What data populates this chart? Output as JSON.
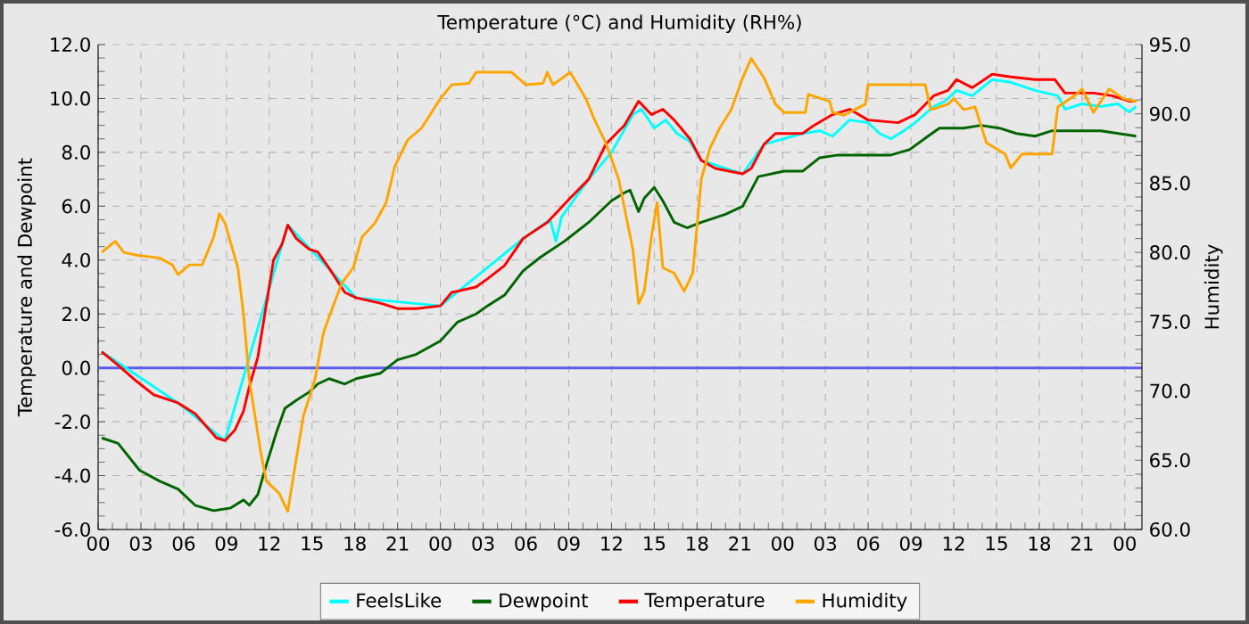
{
  "chart_data": {
    "type": "line",
    "title": "Temperature (°C) and Humidity (RH%)",
    "ylabel": "Temperature and Dewpoint",
    "y2label": "Humidity",
    "xlim": [
      0,
      73.2
    ],
    "ylim": [
      -6,
      12
    ],
    "y2lim": [
      60,
      95
    ],
    "xticks": [
      {
        "value": 0,
        "label": "00"
      },
      {
        "value": 3,
        "label": "03"
      },
      {
        "value": 6,
        "label": "06"
      },
      {
        "value": 9,
        "label": "09"
      },
      {
        "value": 12,
        "label": "12"
      },
      {
        "value": 15,
        "label": "15"
      },
      {
        "value": 18,
        "label": "18"
      },
      {
        "value": 21,
        "label": "21"
      },
      {
        "value": 24,
        "label": "00"
      },
      {
        "value": 27,
        "label": "03"
      },
      {
        "value": 30,
        "label": "06"
      },
      {
        "value": 33,
        "label": "09"
      },
      {
        "value": 36,
        "label": "12"
      },
      {
        "value": 39,
        "label": "15"
      },
      {
        "value": 42,
        "label": "18"
      },
      {
        "value": 45,
        "label": "21"
      },
      {
        "value": 48,
        "label": "00"
      },
      {
        "value": 51,
        "label": "03"
      },
      {
        "value": 54,
        "label": "06"
      },
      {
        "value": 57,
        "label": "09"
      },
      {
        "value": 60,
        "label": "12"
      },
      {
        "value": 63,
        "label": "15"
      },
      {
        "value": 66,
        "label": "18"
      },
      {
        "value": 69,
        "label": "21"
      },
      {
        "value": 72,
        "label": "00"
      }
    ],
    "yticks": [
      {
        "value": -6,
        "label": "-6.0"
      },
      {
        "value": -4,
        "label": "-4.0"
      },
      {
        "value": -2,
        "label": "-2.0"
      },
      {
        "value": 0,
        "label": "0.0"
      },
      {
        "value": 2,
        "label": "2.0"
      },
      {
        "value": 4,
        "label": "4.0"
      },
      {
        "value": 6,
        "label": "6.0"
      },
      {
        "value": 8,
        "label": "8.0"
      },
      {
        "value": 10,
        "label": "10.0"
      },
      {
        "value": 12,
        "label": "12.0"
      }
    ],
    "y2ticks": [
      {
        "value": 60,
        "label": "60.0"
      },
      {
        "value": 65,
        "label": "65.0"
      },
      {
        "value": 70,
        "label": "70.0"
      },
      {
        "value": 75,
        "label": "75.0"
      },
      {
        "value": 80,
        "label": "80.0"
      },
      {
        "value": 85,
        "label": "85.0"
      },
      {
        "value": 90,
        "label": "90.0"
      },
      {
        "value": 95,
        "label": "95.0"
      }
    ],
    "grid": true,
    "legend": "bottom",
    "ref_lines": [
      {
        "axis": "y",
        "value": 0,
        "color": "#5a5af0"
      }
    ],
    "series": [
      {
        "name": "FeelsLike",
        "color": "#00ffff",
        "x": [
          0.25,
          5.6,
          8.9,
          13.3,
          18.1,
          24.0,
          29.8,
          31.7,
          32.1,
          32.5,
          34.4,
          36.0,
          37.5,
          38.1,
          39.0,
          39.8,
          40.6,
          41.5,
          42.3,
          45.2,
          46.7,
          49.4,
          50.6,
          51.5,
          52.7,
          54.0,
          54.8,
          55.6,
          56.5,
          57.3,
          58.6,
          59.4,
          60.2,
          61.3,
          62.7,
          64.0,
          65.7,
          67.3,
          67.8,
          69.0,
          70.3,
          71.5,
          72.3,
          72.8
        ],
        "values": [
          0.6,
          -1.3,
          -2.7,
          5.3,
          2.6,
          2.3,
          4.8,
          5.5,
          4.7,
          5.6,
          7.0,
          8.0,
          9.4,
          9.6,
          8.9,
          9.2,
          8.7,
          8.4,
          7.7,
          7.2,
          8.3,
          8.7,
          8.8,
          8.6,
          9.2,
          9.1,
          8.7,
          8.5,
          8.8,
          9.1,
          9.7,
          9.9,
          10.3,
          10.1,
          10.7,
          10.6,
          10.3,
          10.1,
          9.6,
          9.8,
          9.7,
          9.8,
          9.5,
          9.7
        ]
      },
      {
        "name": "Dewpoint",
        "color": "#006400",
        "x": [
          0.25,
          1.4,
          2.9,
          4.3,
          5.6,
          6.8,
          8.1,
          9.3,
          10.2,
          10.6,
          11.2,
          11.8,
          12.5,
          13.1,
          13.9,
          14.8,
          15.4,
          16.2,
          17.3,
          18.1,
          19.8,
          21.0,
          22.3,
          24.0,
          25.2,
          26.5,
          27.3,
          28.5,
          29.8,
          31.0,
          32.7,
          34.4,
          36.0,
          36.9,
          37.3,
          37.9,
          38.3,
          39.0,
          39.6,
          40.4,
          41.3,
          42.3,
          44.0,
          45.2,
          46.3,
          48.1,
          49.4,
          50.6,
          51.9,
          54.0,
          55.6,
          56.9,
          58.2,
          59.0,
          60.7,
          61.9,
          63.2,
          64.4,
          65.7,
          66.9,
          69.0,
          70.3,
          72.8
        ],
        "values": [
          -2.6,
          -2.8,
          -3.8,
          -4.2,
          -4.5,
          -5.1,
          -5.3,
          -5.2,
          -4.9,
          -5.1,
          -4.7,
          -3.6,
          -2.4,
          -1.5,
          -1.2,
          -0.9,
          -0.6,
          -0.4,
          -0.6,
          -0.4,
          -0.2,
          0.3,
          0.5,
          1.0,
          1.7,
          2.0,
          2.3,
          2.7,
          3.6,
          4.1,
          4.7,
          5.4,
          6.2,
          6.5,
          6.6,
          5.8,
          6.3,
          6.7,
          6.2,
          5.4,
          5.2,
          5.4,
          5.7,
          6.0,
          7.1,
          7.3,
          7.3,
          7.8,
          7.9,
          7.9,
          7.9,
          8.1,
          8.6,
          8.9,
          8.9,
          9.0,
          8.9,
          8.7,
          8.6,
          8.8,
          8.8,
          8.8,
          8.6
        ]
      },
      {
        "name": "Temperature",
        "color": "#ff0000",
        "x": [
          0.25,
          1.4,
          2.7,
          3.9,
          5.6,
          6.8,
          8.3,
          8.9,
          9.6,
          10.2,
          10.6,
          11.2,
          12.3,
          12.9,
          13.3,
          13.9,
          14.8,
          15.4,
          16.2,
          17.3,
          18.1,
          19.8,
          21.0,
          22.3,
          24.0,
          24.8,
          26.5,
          27.3,
          28.5,
          29.8,
          31.5,
          33.1,
          34.4,
          35.6,
          36.9,
          37.9,
          38.8,
          39.6,
          40.4,
          41.5,
          42.3,
          43.3,
          45.2,
          45.8,
          46.7,
          47.5,
          49.4,
          50.2,
          51.5,
          52.7,
          54.0,
          56.1,
          57.3,
          58.6,
          59.6,
          60.2,
          61.3,
          62.7,
          64.0,
          65.7,
          67.1,
          67.8,
          69.8,
          71.1,
          72.3,
          72.8
        ],
        "values": [
          0.6,
          0.1,
          -0.5,
          -1.0,
          -1.3,
          -1.7,
          -2.6,
          -2.7,
          -2.3,
          -1.6,
          -0.7,
          0.4,
          4.0,
          4.6,
          5.3,
          4.8,
          4.4,
          4.3,
          3.7,
          2.8,
          2.6,
          2.4,
          2.2,
          2.2,
          2.3,
          2.8,
          3.0,
          3.3,
          3.8,
          4.8,
          5.4,
          6.3,
          7.0,
          8.3,
          9.0,
          9.9,
          9.4,
          9.6,
          9.2,
          8.5,
          7.7,
          7.4,
          7.2,
          7.4,
          8.3,
          8.7,
          8.7,
          9.0,
          9.4,
          9.6,
          9.2,
          9.1,
          9.4,
          10.1,
          10.3,
          10.7,
          10.4,
          10.9,
          10.8,
          10.7,
          10.7,
          10.2,
          10.2,
          10.1,
          9.9,
          9.9
        ]
      },
      {
        "name": "Humidity",
        "color": "#ffa500",
        "axis": "y2",
        "x": [
          0.25,
          1.2,
          1.8,
          2.7,
          4.3,
          5.2,
          5.6,
          6.4,
          7.3,
          8.1,
          8.5,
          8.9,
          9.8,
          10.2,
          10.6,
          11.0,
          11.4,
          11.8,
          12.7,
          13.3,
          13.7,
          14.4,
          15.2,
          15.8,
          16.4,
          17.1,
          17.9,
          18.5,
          19.4,
          20.2,
          20.8,
          21.7,
          22.7,
          24.0,
          24.8,
          26.0,
          26.5,
          29.0,
          30.0,
          31.2,
          31.5,
          31.9,
          33.1,
          34.2,
          34.8,
          35.6,
          36.5,
          37.5,
          37.9,
          38.3,
          38.8,
          39.2,
          39.6,
          40.4,
          41.1,
          41.7,
          42.3,
          42.9,
          43.6,
          44.4,
          45.2,
          45.8,
          46.7,
          47.5,
          48.1,
          49.6,
          49.8,
          51.3,
          51.5,
          52.3,
          53.8,
          54.0,
          58.0,
          58.4,
          59.6,
          60.0,
          60.7,
          61.5,
          62.3,
          63.6,
          64.0,
          64.8,
          66.9,
          67.3,
          68.6,
          69.0,
          69.8,
          70.9,
          71.9,
          72.8
        ],
        "values": [
          80.0,
          80.8,
          80.0,
          79.8,
          79.6,
          79.1,
          78.4,
          79.1,
          79.1,
          81.1,
          82.8,
          82.1,
          78.9,
          75.5,
          70.8,
          68.2,
          65.6,
          63.5,
          62.6,
          61.3,
          63.9,
          68.2,
          70.8,
          74.2,
          75.9,
          77.8,
          78.9,
          81.1,
          82.1,
          83.6,
          86.2,
          88.1,
          89.0,
          91.1,
          92.1,
          92.2,
          93.0,
          93.0,
          92.1,
          92.2,
          93.0,
          92.1,
          93.0,
          91.1,
          89.6,
          87.9,
          85.3,
          80.2,
          76.3,
          77.2,
          81.1,
          83.6,
          78.9,
          78.5,
          77.2,
          78.5,
          85.3,
          87.5,
          89.0,
          90.3,
          92.6,
          94.0,
          92.6,
          90.7,
          90.1,
          90.1,
          91.4,
          90.9,
          90.1,
          89.9,
          90.7,
          92.1,
          92.1,
          90.3,
          90.7,
          91.1,
          90.3,
          90.5,
          87.9,
          87.1,
          86.1,
          87.1,
          87.1,
          90.5,
          91.4,
          91.8,
          90.1,
          91.8,
          91.1,
          90.9
        ]
      }
    ]
  }
}
